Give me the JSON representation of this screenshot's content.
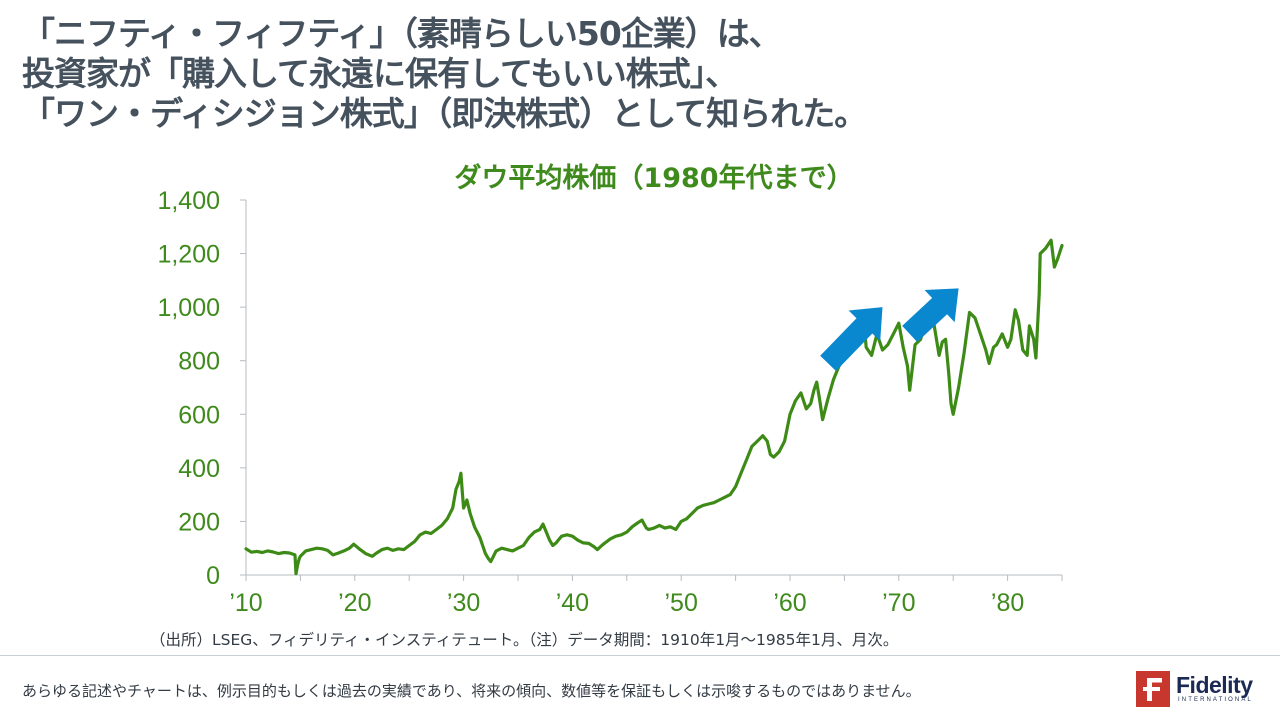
{
  "headline": {
    "line1": "「ニフティ・フィフティ」（素晴らしい50企業）は、",
    "line2": "投資家が「購入して永遠に保有してもいい株式」、",
    "line3": "「ワン・ディシジョン株式」（即決株式）として知られた。"
  },
  "source_note": "（出所）LSEG、フィデリティ・インスティテュート。（注）データ期間：1910年1月～1985年1月、月次。",
  "disclaimer": "あらゆる記述やチャートは、例示目的もしくは過去の実績であり、将来の傾向、数値等を保証もしくは示唆するものではありません。",
  "logo": {
    "word": "Fidelity",
    "sub": "INTERNATIONAL",
    "brand_color": "#c8372d",
    "text_color": "#1b2a55"
  },
  "colors": {
    "line": "#3d8b16",
    "accent_arrow": "#0a88cf",
    "axis_text": "#3f8a1c",
    "headline": "#45525e"
  },
  "chart_data": {
    "type": "line",
    "title": "ダウ平均株価（1980年代まで）",
    "xlabel": "",
    "ylabel": "",
    "xlim": [
      1910,
      1985
    ],
    "ylim": [
      0,
      1400
    ],
    "y_ticks": [
      0,
      200,
      400,
      600,
      800,
      1000,
      1200,
      1400
    ],
    "y_tick_labels": [
      "0",
      "200",
      "400",
      "600",
      "800",
      "1,000",
      "1,200",
      "1,400"
    ],
    "x_ticks": [
      1910,
      1920,
      1930,
      1940,
      1950,
      1960,
      1970,
      1980
    ],
    "x_tick_labels": [
      "’10",
      "’20",
      "’30",
      "’40",
      "’50",
      "’60",
      "’70",
      "’80"
    ],
    "grid": false,
    "annotations": [
      {
        "type": "arrow",
        "icon": "up-right-arrow",
        "from": [
          1963.5,
          790
        ],
        "to": [
          1968.5,
          1000
        ]
      },
      {
        "type": "arrow",
        "icon": "up-right-arrow",
        "from": [
          1971,
          900
        ],
        "to": [
          1975.5,
          1070
        ]
      }
    ],
    "series": [
      {
        "x": [
          1910,
          1910.5,
          1911,
          1911.5,
          1912,
          1912.5,
          1913,
          1913.5,
          1914,
          1914.5,
          1914.6,
          1914.75,
          1914.9,
          1915,
          1915.5,
          1916,
          1916.5,
          1917,
          1917.5,
          1918,
          1918.5,
          1919,
          1919.5,
          1919.9,
          1920.5,
          1921,
          1921.6,
          1922,
          1922.5,
          1923,
          1923.5,
          1924,
          1924.5,
          1925,
          1925.5,
          1926,
          1926.5,
          1927,
          1927.5,
          1928,
          1928.5,
          1929,
          1929.3,
          1929.6,
          1929.75,
          1929.9,
          1930,
          1930.3,
          1930.6,
          1931,
          1931.5,
          1932,
          1932.3,
          1932.5,
          1932.8,
          1933,
          1933.5,
          1934,
          1934.5,
          1935,
          1935.5,
          1936,
          1936.5,
          1937,
          1937.3,
          1937.6,
          1937.9,
          1938.2,
          1938.5,
          1939,
          1939.5,
          1940,
          1940.5,
          1941,
          1941.5,
          1942,
          1942.3,
          1942.7,
          1943,
          1943.5,
          1944,
          1944.5,
          1945,
          1945.5,
          1946,
          1946.4,
          1946.8,
          1947,
          1947.5,
          1948,
          1948.5,
          1949,
          1949.5,
          1950,
          1950.5,
          1951,
          1951.5,
          1952,
          1952.5,
          1953,
          1953.5,
          1954,
          1954.5,
          1955,
          1955.5,
          1956,
          1956.5,
          1957,
          1957.5,
          1957.9,
          1958.2,
          1958.5,
          1959,
          1959.5,
          1960,
          1960.5,
          1961,
          1961.5,
          1961.9,
          1962.2,
          1962.45,
          1962.7,
          1963,
          1963.5,
          1964,
          1964.5,
          1965,
          1965.5,
          1966,
          1966.3,
          1966.7,
          1967,
          1967.5,
          1968,
          1968.5,
          1969,
          1969.5,
          1970,
          1970.4,
          1970.8,
          1971,
          1971.5,
          1972,
          1972.5,
          1973,
          1973.3,
          1973.7,
          1974,
          1974.3,
          1974.6,
          1974.8,
          1975,
          1975.5,
          1976,
          1976.5,
          1977,
          1977.5,
          1978,
          1978.3,
          1978.7,
          1979,
          1979.5,
          1980,
          1980.3,
          1980.7,
          1981,
          1981.4,
          1981.8,
          1982,
          1982.4,
          1982.6,
          1982.9,
          1983,
          1983.5,
          1984,
          1984.3,
          1984.6,
          1985
        ],
        "y": [
          98,
          85,
          88,
          84,
          90,
          86,
          80,
          84,
          82,
          75,
          5,
          40,
          62,
          70,
          90,
          95,
          100,
          98,
          92,
          75,
          82,
          90,
          100,
          115,
          95,
          80,
          70,
          82,
          95,
          100,
          92,
          98,
          95,
          110,
          125,
          150,
          160,
          155,
          170,
          185,
          210,
          250,
          320,
          350,
          380,
          300,
          250,
          280,
          230,
          180,
          140,
          80,
          60,
          50,
          75,
          90,
          100,
          95,
          90,
          100,
          110,
          140,
          160,
          170,
          190,
          160,
          130,
          110,
          120,
          145,
          150,
          145,
          130,
          120,
          118,
          105,
          95,
          110,
          120,
          135,
          145,
          150,
          160,
          180,
          195,
          205,
          175,
          170,
          175,
          185,
          175,
          180,
          170,
          200,
          210,
          230,
          250,
          260,
          265,
          270,
          280,
          290,
          300,
          330,
          380,
          430,
          480,
          500,
          520,
          500,
          450,
          440,
          460,
          500,
          600,
          650,
          680,
          620,
          640,
          690,
          720,
          660,
          580,
          660,
          730,
          780,
          820,
          870,
          920,
          960,
          980,
          850,
          820,
          900,
          840,
          860,
          900,
          940,
          850,
          780,
          690,
          860,
          880,
          950,
          1000,
          920,
          820,
          870,
          880,
          750,
          640,
          600,
          700,
          830,
          980,
          960,
          900,
          840,
          790,
          850,
          860,
          900,
          850,
          880,
          990,
          950,
          840,
          820,
          930,
          880,
          810,
          1050,
          1200,
          1220,
          1250,
          1150,
          1180,
          1230
        ]
      }
    ]
  }
}
